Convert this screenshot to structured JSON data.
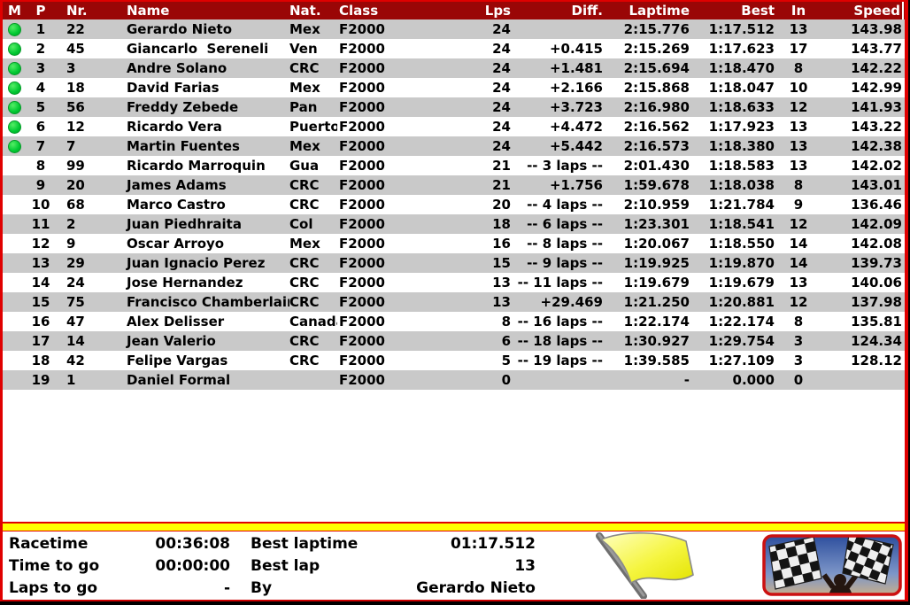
{
  "colors": {
    "header_bg": "#9a0606",
    "border_red": "#e00000",
    "row_alt_bg": "#c9c9c9",
    "row_bg": "#ffffff",
    "status_green": "#00c832",
    "divider_yellow": "#ffff00",
    "flag_yellow": "#f0f000",
    "header_text": "#ffffff",
    "text": "#000000"
  },
  "table": {
    "columns": [
      {
        "key": "m",
        "label": "M"
      },
      {
        "key": "p",
        "label": "P"
      },
      {
        "key": "nr",
        "label": "Nr."
      },
      {
        "key": "name",
        "label": "Name"
      },
      {
        "key": "nat",
        "label": "Nat."
      },
      {
        "key": "class",
        "label": "Class"
      },
      {
        "key": "lps",
        "label": "Lps"
      },
      {
        "key": "diff",
        "label": "Diff."
      },
      {
        "key": "laptime",
        "label": "Laptime"
      },
      {
        "key": "best",
        "label": "Best"
      },
      {
        "key": "in",
        "label": "In"
      },
      {
        "key": "speed",
        "label": "Speed"
      }
    ],
    "rows": [
      {
        "m": true,
        "p": "1",
        "nr": "22",
        "name": "Gerardo Nieto",
        "nat": "Mex",
        "class": "F2000",
        "lps": "24",
        "diff": "",
        "laptime": "2:15.776",
        "best": "1:17.512",
        "in": "13",
        "speed": "143.98"
      },
      {
        "m": true,
        "p": "2",
        "nr": "45",
        "name": "Giancarlo  Sereneli",
        "nat": "Ven",
        "class": "F2000",
        "lps": "24",
        "diff": "+0.415",
        "laptime": "2:15.269",
        "best": "1:17.623",
        "in": "17",
        "speed": "143.77"
      },
      {
        "m": true,
        "p": "3",
        "nr": "3",
        "name": "Andre Solano",
        "nat": "CRC",
        "class": "F2000",
        "lps": "24",
        "diff": "+1.481",
        "laptime": "2:15.694",
        "best": "1:18.470",
        "in": "8",
        "speed": "142.22"
      },
      {
        "m": true,
        "p": "4",
        "nr": "18",
        "name": "David Farias",
        "nat": "Mex",
        "class": "F2000",
        "lps": "24",
        "diff": "+2.166",
        "laptime": "2:15.868",
        "best": "1:18.047",
        "in": "10",
        "speed": "142.99"
      },
      {
        "m": true,
        "p": "5",
        "nr": "56",
        "name": "Freddy Zebede",
        "nat": "Pan",
        "class": "F2000",
        "lps": "24",
        "diff": "+3.723",
        "laptime": "2:16.980",
        "best": "1:18.633",
        "in": "12",
        "speed": "141.93"
      },
      {
        "m": true,
        "p": "6",
        "nr": "12",
        "name": "Ricardo Vera",
        "nat": "Puerto",
        "class": "F2000",
        "lps": "24",
        "diff": "+4.472",
        "laptime": "2:16.562",
        "best": "1:17.923",
        "in": "13",
        "speed": "143.22"
      },
      {
        "m": true,
        "p": "7",
        "nr": "7",
        "name": "Martin Fuentes",
        "nat": "Mex",
        "class": "F2000",
        "lps": "24",
        "diff": "+5.442",
        "laptime": "2:16.573",
        "best": "1:18.380",
        "in": "13",
        "speed": "142.38"
      },
      {
        "m": false,
        "p": "8",
        "nr": "99",
        "name": "Ricardo Marroquin",
        "nat": "Gua",
        "class": "F2000",
        "lps": "21",
        "diff": "-- 3 laps --",
        "laptime": "2:01.430",
        "best": "1:18.583",
        "in": "13",
        "speed": "142.02"
      },
      {
        "m": false,
        "p": "9",
        "nr": "20",
        "name": "James Adams",
        "nat": "CRC",
        "class": "F2000",
        "lps": "21",
        "diff": "+1.756",
        "laptime": "1:59.678",
        "best": "1:18.038",
        "in": "8",
        "speed": "143.01"
      },
      {
        "m": false,
        "p": "10",
        "nr": "68",
        "name": "Marco Castro",
        "nat": "CRC",
        "class": "F2000",
        "lps": "20",
        "diff": "-- 4 laps --",
        "laptime": "2:10.959",
        "best": "1:21.784",
        "in": "9",
        "speed": "136.46"
      },
      {
        "m": false,
        "p": "11",
        "nr": "2",
        "name": "Juan Piedhraita",
        "nat": "Col",
        "class": "F2000",
        "lps": "18",
        "diff": "-- 6 laps --",
        "laptime": "1:23.301",
        "best": "1:18.541",
        "in": "12",
        "speed": "142.09"
      },
      {
        "m": false,
        "p": "12",
        "nr": "9",
        "name": "Oscar Arroyo",
        "nat": "Mex",
        "class": "F2000",
        "lps": "16",
        "diff": "-- 8 laps --",
        "laptime": "1:20.067",
        "best": "1:18.550",
        "in": "14",
        "speed": "142.08"
      },
      {
        "m": false,
        "p": "13",
        "nr": "29",
        "name": "Juan Ignacio Perez",
        "nat": "CRC",
        "class": "F2000",
        "lps": "15",
        "diff": "-- 9 laps --",
        "laptime": "1:19.925",
        "best": "1:19.870",
        "in": "14",
        "speed": "139.73"
      },
      {
        "m": false,
        "p": "14",
        "nr": "24",
        "name": "Jose Hernandez",
        "nat": "CRC",
        "class": "F2000",
        "lps": "13",
        "diff": "-- 11 laps --",
        "laptime": "1:19.679",
        "best": "1:19.679",
        "in": "13",
        "speed": "140.06"
      },
      {
        "m": false,
        "p": "15",
        "nr": "75",
        "name": "Francisco Chamberlain",
        "nat": "CRC",
        "class": "F2000",
        "lps": "13",
        "diff": "+29.469",
        "laptime": "1:21.250",
        "best": "1:20.881",
        "in": "12",
        "speed": "137.98"
      },
      {
        "m": false,
        "p": "16",
        "nr": "47",
        "name": "Alex Delisser",
        "nat": "Canada",
        "class": "F2000",
        "lps": "8",
        "diff": "-- 16 laps --",
        "laptime": "1:22.174",
        "best": "1:22.174",
        "in": "8",
        "speed": "135.81"
      },
      {
        "m": false,
        "p": "17",
        "nr": "14",
        "name": "Jean Valerio",
        "nat": "CRC",
        "class": "F2000",
        "lps": "6",
        "diff": "-- 18 laps --",
        "laptime": "1:30.927",
        "best": "1:29.754",
        "in": "3",
        "speed": "124.34"
      },
      {
        "m": false,
        "p": "18",
        "nr": "42",
        "name": "Felipe Vargas",
        "nat": "CRC",
        "class": "F2000",
        "lps": "5",
        "diff": "-- 19 laps --",
        "laptime": "1:39.585",
        "best": "1:27.109",
        "in": "3",
        "speed": "128.12"
      },
      {
        "m": false,
        "p": "19",
        "nr": "1",
        "name": "Daniel Formal",
        "nat": "",
        "class": "F2000",
        "lps": "0",
        "diff": "",
        "laptime": "-",
        "best": "0.000",
        "in": "0",
        "speed": ""
      }
    ]
  },
  "summary": {
    "racetime_label": "Racetime",
    "racetime": "00:36:08",
    "time_to_go_label": "Time to go",
    "time_to_go": "00:00:00",
    "laps_to_go_label": "Laps to go",
    "laps_to_go": "-",
    "best_laptime_label": "Best laptime",
    "best_laptime": "01:17.512",
    "best_lap_label": "Best lap",
    "best_lap": "13",
    "by_label": "By",
    "by": "Gerardo Nieto"
  },
  "icons": {
    "status_flag": "yellow-flag",
    "finish_photo": "checkered-flags"
  }
}
